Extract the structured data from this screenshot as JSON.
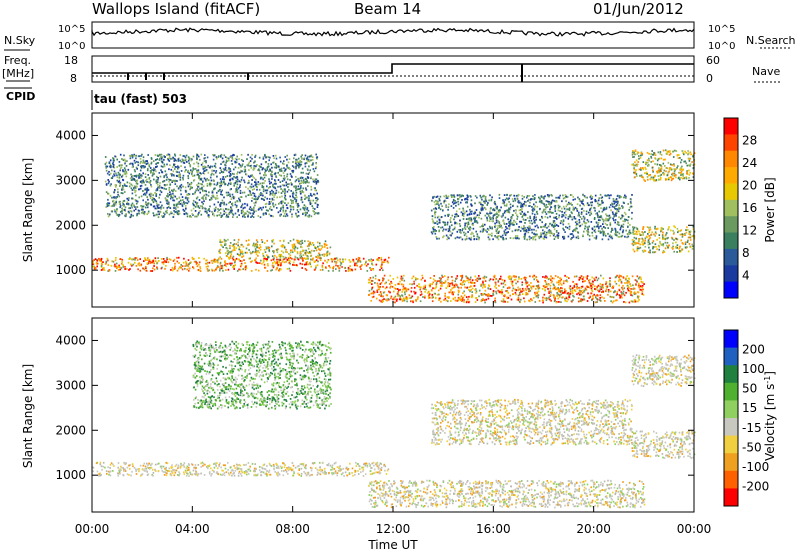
{
  "header": {
    "station": "Wallops Island (fitACF)",
    "beam": "Beam 14",
    "date": "01/Jun/2012"
  },
  "aux": {
    "nsky_label": "N.Sky",
    "nsearch_label": "N.Search",
    "freq_label": "Freq.",
    "freq_unit": "[MHz]",
    "nave_label": "Nave",
    "cpid_label": "CPID",
    "cpid_text": "tau (fast) 503",
    "noise_ticks": [
      "10^5",
      "10^0"
    ],
    "freq_ticks": [
      "18",
      "8"
    ],
    "nave_ticks": [
      "60",
      "0"
    ]
  },
  "chart_data": [
    {
      "type": "heatmap",
      "name": "power",
      "ylabel": "Slant Range [km]",
      "xlabel": "Time UT",
      "x_ticks": [
        "00:00",
        "04:00",
        "08:00",
        "12:00",
        "16:00",
        "20:00",
        "00:00"
      ],
      "y_ticks": [
        "4000",
        "3000",
        "2000",
        "1000"
      ],
      "ylim": [
        180,
        4500
      ],
      "xlim": [
        0,
        24
      ],
      "colorbar": {
        "label": "Power [dB]",
        "ticks": [
          "28",
          "24",
          "20",
          "16",
          "12",
          "8",
          "4"
        ],
        "colors": [
          "#ff0000",
          "#ff4400",
          "#ff8800",
          "#ffaa00",
          "#e8c800",
          "#a0c060",
          "#6a9a60",
          "#3a8060",
          "#2a5a9a",
          "#1a3aa0",
          "#0000ff"
        ]
      },
      "regions": [
        {
          "t0": 0.0,
          "t1": 11.8,
          "r0": 1000,
          "r1": 1300,
          "level": "high"
        },
        {
          "t0": 11.0,
          "t1": 22.0,
          "r0": 300,
          "r1": 900,
          "level": "high"
        },
        {
          "t0": 5.0,
          "t1": 9.5,
          "r0": 1300,
          "r1": 1700,
          "level": "mid"
        },
        {
          "t0": 0.5,
          "t1": 9.0,
          "r0": 2200,
          "r1": 3600,
          "level": "low"
        },
        {
          "t0": 21.5,
          "t1": 24.0,
          "r0": 1400,
          "r1": 2000,
          "level": "mid"
        },
        {
          "t0": 21.5,
          "t1": 24.0,
          "r0": 3000,
          "r1": 3700,
          "level": "mid"
        },
        {
          "t0": 13.5,
          "t1": 21.5,
          "r0": 1700,
          "r1": 2700,
          "level": "low"
        }
      ]
    },
    {
      "type": "heatmap",
      "name": "velocity",
      "ylabel": "Slant Range [km]",
      "xlabel": "Time UT",
      "x_ticks": [
        "00:00",
        "04:00",
        "08:00",
        "12:00",
        "16:00",
        "20:00",
        "00:00"
      ],
      "y_ticks": [
        "4000",
        "3000",
        "2000",
        "1000"
      ],
      "ylim": [
        180,
        4500
      ],
      "xlim": [
        0,
        24
      ],
      "colorbar": {
        "label": "Velocity [m s^-1]",
        "ticks": [
          "200",
          "100",
          "50",
          "15",
          "-15",
          "-50",
          "-100",
          "-200"
        ],
        "colors": [
          "#0000ff",
          "#2060c0",
          "#208040",
          "#50b030",
          "#90d060",
          "#c8c8c0",
          "#f0d040",
          "#f0a020",
          "#ff6000",
          "#ff0000"
        ]
      },
      "regions": [
        {
          "t0": 0.0,
          "t1": 11.8,
          "r0": 1000,
          "r1": 1300,
          "level": "zero"
        },
        {
          "t0": 11.0,
          "t1": 22.0,
          "r0": 300,
          "r1": 900,
          "level": "zero"
        },
        {
          "t0": 4.0,
          "t1": 9.5,
          "r0": 2500,
          "r1": 4000,
          "level": "positive"
        },
        {
          "t0": 13.5,
          "t1": 21.5,
          "r0": 1700,
          "r1": 2700,
          "level": "zero"
        },
        {
          "t0": 21.5,
          "t1": 24.0,
          "r0": 1400,
          "r1": 2000,
          "level": "zero"
        },
        {
          "t0": 21.5,
          "t1": 24.0,
          "r0": 3000,
          "r1": 3700,
          "level": "zero"
        }
      ]
    }
  ]
}
